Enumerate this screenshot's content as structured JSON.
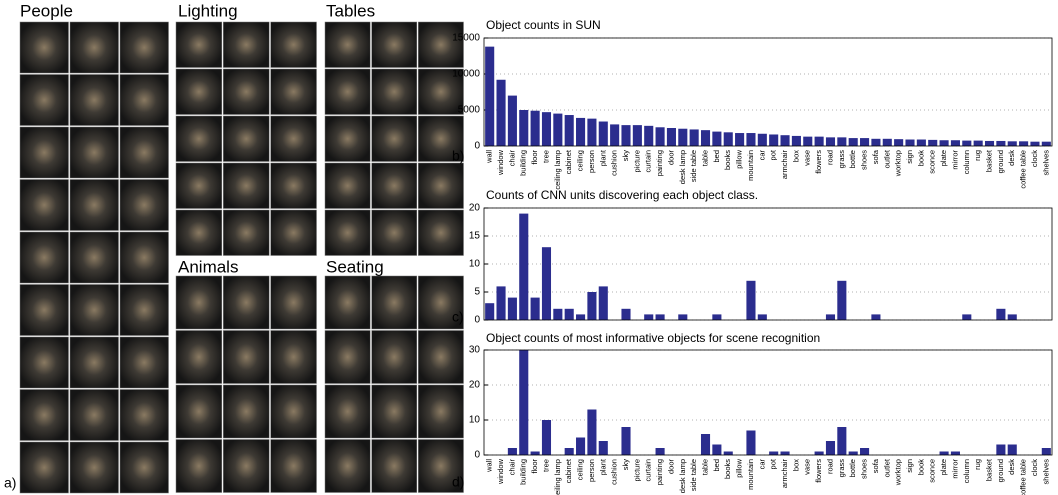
{
  "figure": {
    "groups": [
      "People",
      "Lighting",
      "Tables",
      "Animals",
      "Seating"
    ],
    "panel_labels": [
      "a)",
      "b)",
      "c)",
      "d)"
    ]
  },
  "chart_data": [
    {
      "type": "bar",
      "title": "Object counts in SUN",
      "color": "#2b2d8e",
      "grid": true,
      "categories": [
        "wall",
        "window",
        "chair",
        "building",
        "floor",
        "tree",
        "ceiling lamp",
        "cabinet",
        "ceiling",
        "person",
        "plant",
        "cushion",
        "sky",
        "picture",
        "curtain",
        "painting",
        "door",
        "desk lamp",
        "side table",
        "table",
        "bed",
        "books",
        "pillow",
        "mountain",
        "car",
        "pot",
        "armchair",
        "box",
        "vase",
        "flowers",
        "road",
        "grass",
        "bottle",
        "shoes",
        "sofa",
        "outlet",
        "worktop",
        "sign",
        "book",
        "sconce",
        "plate",
        "mirror",
        "column",
        "rug",
        "basket",
        "ground",
        "desk",
        "coffee table",
        "clock",
        "shelves"
      ],
      "values": [
        13800,
        9200,
        7000,
        5000,
        4900,
        4700,
        4500,
        4300,
        3900,
        3800,
        3400,
        3000,
        2900,
        2900,
        2800,
        2600,
        2500,
        2400,
        2300,
        2200,
        2000,
        1900,
        1800,
        1800,
        1700,
        1600,
        1500,
        1400,
        1300,
        1300,
        1200,
        1200,
        1100,
        1100,
        1000,
        1000,
        950,
        900,
        900,
        850,
        800,
        800,
        750,
        750,
        700,
        700,
        650,
        650,
        600,
        600
      ],
      "ylim": [
        0,
        15000
      ],
      "yticks": [
        0,
        5000,
        10000,
        15000
      ]
    },
    {
      "type": "bar",
      "title": "Counts of CNN units discovering each object class.",
      "color": "#2b2d8e",
      "grid": true,
      "categories": [
        null,
        null,
        null,
        null,
        null,
        null,
        null,
        null,
        null,
        null,
        null,
        null,
        null,
        null,
        null,
        null,
        null,
        null,
        null,
        null,
        null,
        null,
        null,
        null,
        null,
        null,
        null,
        null,
        null,
        null,
        null,
        null,
        null,
        null,
        null,
        null,
        null,
        null,
        null,
        null,
        null,
        null,
        null,
        null,
        null,
        null,
        null,
        null,
        null,
        null
      ],
      "values": [
        3,
        6,
        4,
        19,
        4,
        13,
        2,
        2,
        1,
        5,
        6,
        0,
        2,
        0,
        1,
        1,
        0,
        1,
        0,
        0,
        1,
        0,
        0,
        7,
        1,
        0,
        0,
        0,
        0,
        0,
        1,
        7,
        0,
        0,
        1,
        0,
        0,
        0,
        0,
        0,
        0,
        0,
        1,
        0,
        0,
        2,
        1,
        0,
        0,
        0
      ],
      "ylim": [
        0,
        20
      ],
      "yticks": [
        0,
        5,
        10,
        15,
        20
      ]
    },
    {
      "type": "bar",
      "title": "Object counts of most informative objects for scene recognition",
      "color": "#2b2d8e",
      "grid": true,
      "categories": [
        "wall",
        "window",
        "chair",
        "building",
        "floor",
        "tree",
        "ceiling lamp",
        "cabinet",
        "ceiling",
        "person",
        "plant",
        "cushion",
        "sky",
        "picture",
        "curtain",
        "painting",
        "door",
        "desk lamp",
        "side table",
        "table",
        "bed",
        "books",
        "pillow",
        "mountain",
        "car",
        "pot",
        "armchair",
        "box",
        "vase",
        "flowers",
        "road",
        "grass",
        "bottle",
        "shoes",
        "sofa",
        "outlet",
        "worktop",
        "sign",
        "book",
        "sconce",
        "plate",
        "mirror",
        "column",
        "rug",
        "basket",
        "ground",
        "desk",
        "coffee table",
        "clock",
        "shelves"
      ],
      "values": [
        0,
        0,
        2,
        30,
        1,
        10,
        0,
        2,
        5,
        13,
        4,
        0,
        8,
        0,
        0,
        2,
        0,
        0,
        0,
        6,
        3,
        1,
        0,
        7,
        0,
        1,
        1,
        0,
        0,
        1,
        4,
        8,
        1,
        2,
        0,
        0,
        0,
        0,
        0,
        0,
        1,
        1,
        0,
        0,
        0,
        3,
        3,
        0,
        0,
        2
      ],
      "ylim": [
        0,
        30
      ],
      "yticks": [
        0,
        10,
        20,
        30
      ]
    }
  ]
}
